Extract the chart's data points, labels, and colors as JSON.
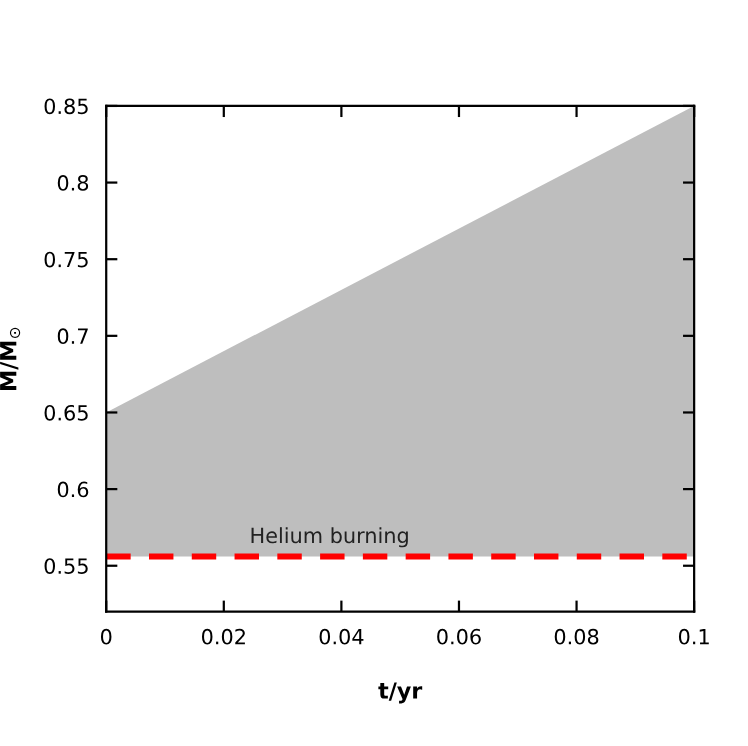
{
  "chart_data": {
    "type": "area",
    "xlabel": "t/yr",
    "ylabel": "M/M$_{⊙}$",
    "xlim": [
      0,
      0.1
    ],
    "xticks": [
      0,
      0.02,
      0.04,
      0.06,
      0.08,
      0.1
    ],
    "ylim": [
      0.52,
      0.85
    ],
    "yticks": [
      0.55,
      0.6,
      0.65,
      0.7,
      0.75,
      0.8,
      0.85
    ],
    "series": [
      {
        "x": [
          0,
          0.1
        ],
        "values": [
          0.65,
          0.85
        ],
        "color": "#bebebe"
      }
    ],
    "ref_lines": [
      {
        "axis": "y",
        "value": 0.556,
        "label": "Helium burning",
        "color": "#ff0000",
        "line_style": "dashed"
      }
    ],
    "grid": false,
    "legend": false
  }
}
